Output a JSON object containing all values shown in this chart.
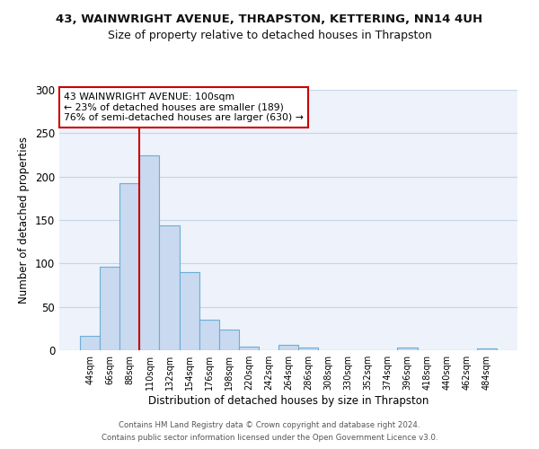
{
  "title": "43, WAINWRIGHT AVENUE, THRAPSTON, KETTERING, NN14 4UH",
  "subtitle": "Size of property relative to detached houses in Thrapston",
  "xlabel": "Distribution of detached houses by size in Thrapston",
  "ylabel": "Number of detached properties",
  "bar_labels": [
    "44sqm",
    "66sqm",
    "88sqm",
    "110sqm",
    "132sqm",
    "154sqm",
    "176sqm",
    "198sqm",
    "220sqm",
    "242sqm",
    "264sqm",
    "286sqm",
    "308sqm",
    "330sqm",
    "352sqm",
    "374sqm",
    "396sqm",
    "418sqm",
    "440sqm",
    "462sqm",
    "484sqm"
  ],
  "bar_values": [
    17,
    96,
    192,
    224,
    144,
    90,
    35,
    24,
    4,
    0,
    6,
    3,
    0,
    0,
    0,
    0,
    3,
    0,
    0,
    0,
    2
  ],
  "bar_color": "#c9d9f0",
  "bar_edge_color": "#6baed6",
  "bar_edge_width": 0.8,
  "vline_color": "#cc0000",
  "vline_linewidth": 1.5,
  "annotation_line1": "43 WAINWRIGHT AVENUE: 100sqm",
  "annotation_line2": "← 23% of detached houses are smaller (189)",
  "annotation_line3": "76% of semi-detached houses are larger (630) →",
  "annotation_box_color": "#cc0000",
  "ylim": [
    0,
    300
  ],
  "yticks": [
    0,
    50,
    100,
    150,
    200,
    250,
    300
  ],
  "footer1": "Contains HM Land Registry data © Crown copyright and database right 2024.",
  "footer2": "Contains public sector information licensed under the Open Government Licence v3.0.",
  "bg_color": "#edf2fb",
  "grid_color": "#c5d5e8"
}
